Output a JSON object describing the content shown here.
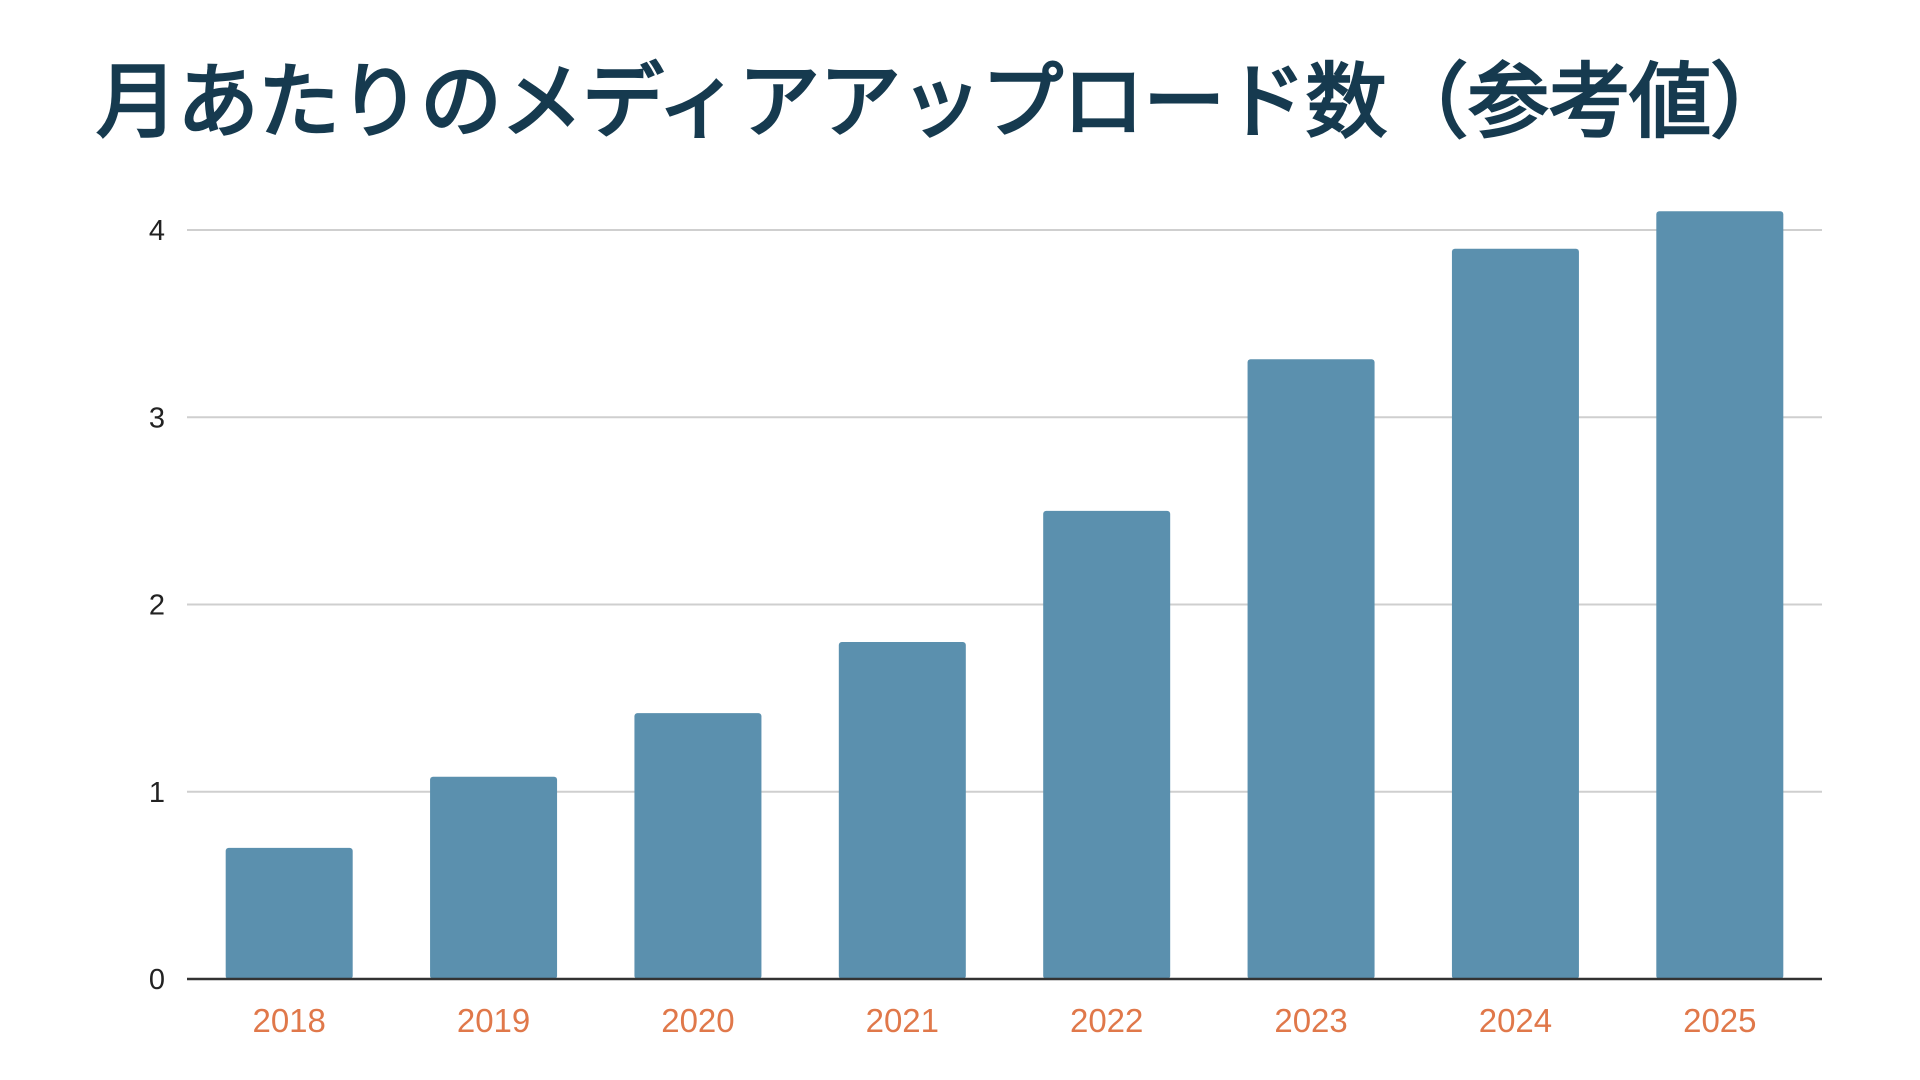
{
  "colors": {
    "title": "#163a4f",
    "bar": "#5b90ae",
    "grid": "#cfcfcf",
    "axis": "#333333",
    "y_tick_label": "#222222",
    "x_tick_label": "#e0784a"
  },
  "chart_data": {
    "type": "bar",
    "title": "月あたりのメディアアップロード数（参考値）",
    "xlabel": "",
    "ylabel": "",
    "categories": [
      "2018",
      "2019",
      "2020",
      "2021",
      "2022",
      "2023",
      "2024",
      "2025"
    ],
    "values": [
      0.7,
      1.08,
      1.42,
      1.8,
      2.5,
      3.31,
      3.9,
      4.1
    ],
    "ylim": [
      0,
      4
    ],
    "yticks": [
      "0",
      "1",
      "2",
      "3",
      "4"
    ],
    "grid": true,
    "legend": "none"
  }
}
